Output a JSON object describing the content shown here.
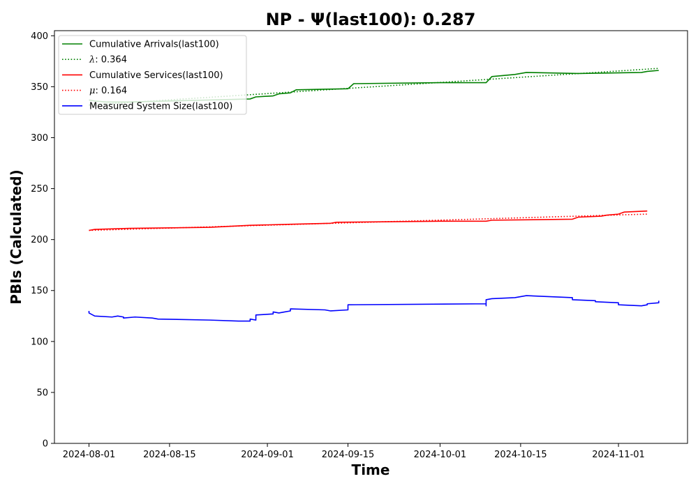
{
  "chart_data": {
    "type": "line",
    "title": "NP -  Ψ(last100): 0.287",
    "xlabel": "Time",
    "ylabel": "PBIs (Calculated)",
    "x_range": [
      "2024-07-26",
      "2024-11-13"
    ],
    "ylim": [
      0,
      405
    ],
    "x_ticks": [
      "2024-08-01",
      "2024-08-15",
      "2024-09-01",
      "2024-09-15",
      "2024-10-01",
      "2024-10-15",
      "2024-11-01"
    ],
    "y_ticks": [
      0,
      50,
      100,
      150,
      200,
      250,
      300,
      350,
      400
    ],
    "grid": false,
    "legend_position": "top-left",
    "series": [
      {
        "name": "Cumulative Arrivals(last100)",
        "color": "#008000",
        "style": "solid",
        "x": [
          "2024-08-01",
          "2024-08-02",
          "2024-08-04",
          "2024-08-08",
          "2024-08-15",
          "2024-08-22",
          "2024-08-29",
          "2024-08-30",
          "2024-09-02",
          "2024-09-03",
          "2024-09-05",
          "2024-09-06",
          "2024-09-15",
          "2024-09-16",
          "2024-10-01",
          "2024-10-09",
          "2024-10-10",
          "2024-10-14",
          "2024-10-16",
          "2024-10-25",
          "2024-11-05",
          "2024-11-06",
          "2024-11-08"
        ],
        "y": [
          337,
          336,
          335,
          335,
          336,
          337,
          338,
          340,
          341,
          343,
          344,
          347,
          348,
          353,
          354,
          354,
          360,
          362,
          364,
          363,
          364,
          365,
          366
        ]
      },
      {
        "name": "λ: 0.364",
        "color": "#008000",
        "style": "dotted",
        "x": [
          "2024-08-01",
          "2024-11-08"
        ],
        "y": [
          332,
          368
        ]
      },
      {
        "name": "Cumulative Services(last100)",
        "color": "#ff0000",
        "style": "solid",
        "x": [
          "2024-08-01",
          "2024-08-02",
          "2024-08-08",
          "2024-08-22",
          "2024-08-29",
          "2024-09-05",
          "2024-09-12",
          "2024-09-13",
          "2024-10-01",
          "2024-10-09",
          "2024-10-10",
          "2024-10-24",
          "2024-10-25",
          "2024-10-29",
          "2024-10-30",
          "2024-11-01",
          "2024-11-02",
          "2024-11-06"
        ],
        "y": [
          209,
          210,
          211,
          212,
          214,
          215,
          216,
          217,
          218,
          218,
          219,
          220,
          222,
          223,
          224,
          225,
          227,
          228
        ]
      },
      {
        "name": "μ: 0.164",
        "color": "#ff0000",
        "style": "dotted",
        "x": [
          "2024-08-01",
          "2024-11-06"
        ],
        "y": [
          209,
          225
        ]
      },
      {
        "name": "Measured System Size(last100)",
        "color": "#0000ff",
        "style": "solid",
        "x": [
          "2024-08-01",
          "2024-08-01",
          "2024-08-02",
          "2024-08-05",
          "2024-08-06",
          "2024-08-07",
          "2024-08-07",
          "2024-08-09",
          "2024-08-12",
          "2024-08-13",
          "2024-08-22",
          "2024-08-27",
          "2024-08-29",
          "2024-08-29",
          "2024-08-30",
          "2024-08-30",
          "2024-09-02",
          "2024-09-02",
          "2024-09-03",
          "2024-09-04",
          "2024-09-05",
          "2024-09-05",
          "2024-09-11",
          "2024-09-12",
          "2024-09-15",
          "2024-09-15",
          "2024-10-09",
          "2024-10-09",
          "2024-10-09",
          "2024-10-10",
          "2024-10-14",
          "2024-10-16",
          "2024-10-24",
          "2024-10-24",
          "2024-10-28",
          "2024-10-28",
          "2024-11-01",
          "2024-11-01",
          "2024-11-05",
          "2024-11-06",
          "2024-11-06",
          "2024-11-08",
          "2024-11-08"
        ],
        "y": [
          130,
          128,
          125,
          124,
          125,
          124,
          123,
          124,
          123,
          122,
          121,
          120,
          120,
          122,
          121,
          126,
          127,
          129,
          128,
          129,
          130,
          132,
          131,
          130,
          131,
          136,
          137,
          135,
          141,
          142,
          143,
          145,
          143,
          141,
          140,
          139,
          138,
          136,
          135,
          136,
          137,
          138,
          140
        ]
      }
    ],
    "legend": [
      {
        "label": "Cumulative Arrivals(last100)",
        "color": "#008000",
        "style": "solid"
      },
      {
        "label_symbol": "λ",
        "label_rest": ": 0.364",
        "color": "#008000",
        "style": "dotted"
      },
      {
        "label": "Cumulative Services(last100)",
        "color": "#ff0000",
        "style": "solid"
      },
      {
        "label_symbol": "μ",
        "label_rest": ": 0.164",
        "color": "#ff0000",
        "style": "dotted"
      },
      {
        "label": "Measured System Size(last100)",
        "color": "#0000ff",
        "style": "solid"
      }
    ]
  }
}
